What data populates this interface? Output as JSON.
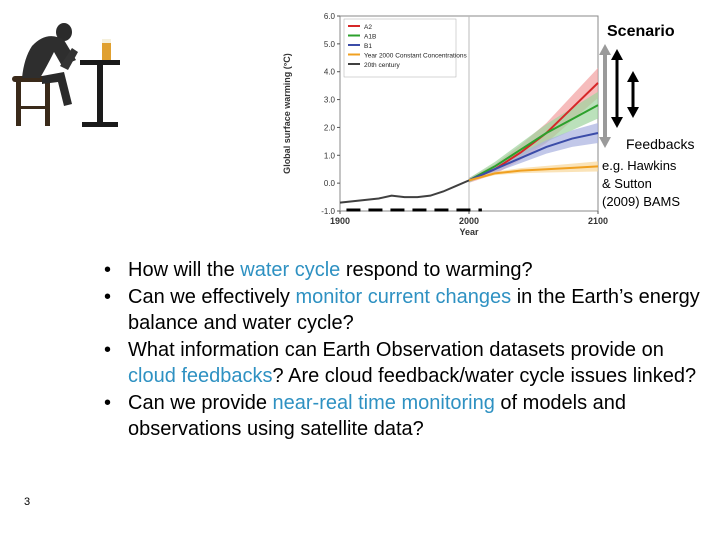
{
  "chart_data": {
    "type": "line",
    "title": "",
    "xlabel": "Year",
    "ylabel": "Global surface warming (°C)",
    "xlim": [
      1900,
      2100
    ],
    "ylim": [
      -1.0,
      6.0
    ],
    "xticks": [
      "1900",
      "2000",
      "2100"
    ],
    "yticks": [
      "-1.0",
      "0.0",
      "1.0",
      "2.0",
      "3.0",
      "4.0",
      "5.0",
      "6.0"
    ],
    "legend_position": "top-left",
    "series": [
      {
        "name": "A2",
        "color": "#d62728",
        "x": [
          2000,
          2020,
          2040,
          2060,
          2080,
          2100
        ],
        "y": [
          0.1,
          0.5,
          1.1,
          1.8,
          2.7,
          3.6
        ]
      },
      {
        "name": "A1B",
        "color": "#2ca02c",
        "x": [
          2000,
          2020,
          2040,
          2060,
          2080,
          2100
        ],
        "y": [
          0.1,
          0.6,
          1.2,
          1.8,
          2.3,
          2.8
        ]
      },
      {
        "name": "B1",
        "color": "#3b4ca8",
        "x": [
          2000,
          2020,
          2040,
          2060,
          2080,
          2100
        ],
        "y": [
          0.1,
          0.5,
          0.9,
          1.3,
          1.6,
          1.8
        ]
      },
      {
        "name": "Year 2000 Constant Concentrations",
        "color": "#f0a020",
        "x": [
          2000,
          2020,
          2040,
          2060,
          2080,
          2100
        ],
        "y": [
          0.1,
          0.35,
          0.45,
          0.5,
          0.55,
          0.6
        ]
      },
      {
        "name": "20th century",
        "color": "#404040",
        "x": [
          1900,
          1910,
          1920,
          1930,
          1940,
          1950,
          1960,
          1970,
          1980,
          1990,
          2000
        ],
        "y": [
          -0.7,
          -0.65,
          -0.6,
          -0.55,
          -0.45,
          -0.5,
          -0.5,
          -0.45,
          -0.3,
          -0.1,
          0.1
        ]
      }
    ]
  },
  "annotations": {
    "scenario": "Scenario",
    "feedbacks": "Feedbacks",
    "reference": "e.g. Hawkins\n& Sutton\n(2009) BAMS"
  },
  "bullets": [
    [
      {
        "t": "How will the "
      },
      {
        "t": "water cycle",
        "hl": true
      },
      {
        "t": " respond to warming?"
      }
    ],
    [
      {
        "t": "Can we effectively "
      },
      {
        "t": "monitor current changes",
        "hl": true
      },
      {
        "t": " in the Earth’s energy balance and water cycle?"
      }
    ],
    [
      {
        "t": "What information can Earth Observation datasets provide on "
      },
      {
        "t": "cloud feedbacks",
        "hl": true
      },
      {
        "t": "? Are cloud feedback/water cycle issues linked?"
      }
    ],
    [
      {
        "t": "Can we provide "
      },
      {
        "t": "near-real time monitoring",
        "hl": true
      },
      {
        "t": " of models and observations using satellite data?"
      }
    ]
  ],
  "slide_number": "3",
  "colors": {
    "highlight": "#2e91c2",
    "arrow_black": "#000000",
    "arrow_gray": "#9a9a9a"
  },
  "icons": {
    "thinker": "thinker-statue-on-bar-stool-icon"
  }
}
